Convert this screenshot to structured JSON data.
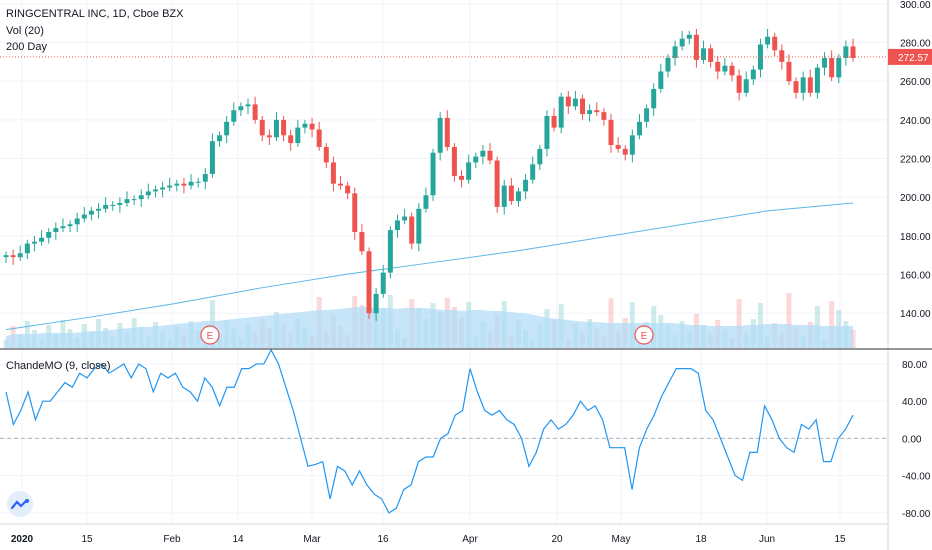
{
  "header": {
    "symbol_line": "RINGCENTRAL INC, 1D, Cboe BZX",
    "volume_label": "Vol (20)",
    "ma_label": "200 Day"
  },
  "oscillator": {
    "label": "ChandeMO (9, close)"
  },
  "price_marker": {
    "value": "272.57",
    "color": "#ef5350"
  },
  "earnings_badges": [
    {
      "label": "E",
      "date": "2020-02-10"
    },
    {
      "label": "E",
      "date": "2020-05-07"
    }
  ],
  "colors": {
    "up": "#26a69a",
    "down": "#ef5350",
    "ma_line": "#5bb8e6",
    "volume_avg_fill": "#b3dcf7",
    "oscillator_line": "#2196f3"
  },
  "icons": {
    "logo": "tradingview-logo-icon",
    "earnings": "earnings-badge-icon"
  },
  "chart_data": [
    {
      "type": "candlestick",
      "title": "RINGCENTRAL INC, 1D, Cboe BZX",
      "x_ticks": [
        "2020",
        "15",
        "Feb",
        "14",
        "Mar",
        "16",
        "Apr",
        "20",
        "May",
        "18",
        "Jun",
        "15"
      ],
      "y_ticks": [
        "140.00",
        "160.00",
        "180.00",
        "200.00",
        "220.00",
        "240.00",
        "260.00",
        "280.00",
        "300.00"
      ],
      "ylim": [
        122,
        302
      ],
      "last_price": 272.57,
      "candles_close": [
        170,
        169,
        171,
        176,
        177,
        179,
        182,
        184,
        185,
        186,
        189,
        191,
        193,
        194,
        196,
        196,
        197,
        199,
        199,
        201,
        203,
        204,
        205,
        206,
        207,
        206,
        208,
        208,
        212,
        229,
        232,
        239,
        245,
        247,
        248,
        240,
        232,
        231,
        240,
        232,
        228,
        236,
        238,
        235,
        226,
        218,
        207,
        206,
        202,
        182,
        172,
        140,
        150,
        161,
        183,
        188,
        190,
        176,
        194,
        201,
        223,
        241,
        226,
        211,
        209,
        218,
        221,
        224,
        219,
        195,
        206,
        198,
        203,
        209,
        217,
        225,
        242,
        236,
        252,
        247,
        251,
        243,
        245,
        244,
        240,
        227,
        225,
        222,
        232,
        239,
        246,
        256,
        265,
        272,
        278,
        282,
        284,
        271,
        277,
        270,
        265,
        268,
        263,
        254,
        261,
        266,
        279,
        283,
        276,
        270,
        260,
        254,
        262,
        254,
        267,
        272,
        262,
        272,
        278,
        272
      ],
      "series": [
        {
          "name": "200 Day",
          "values": [
            131.5,
            138,
            145,
            153,
            160,
            166,
            172,
            179,
            186,
            193,
            197
          ]
        },
        {
          "name": "Vol (20)",
          "values_relative": [
            12,
            14,
            14,
            14,
            15,
            15,
            15,
            15,
            16,
            17,
            17,
            18,
            19,
            20,
            21,
            21,
            22,
            23,
            24,
            25,
            26,
            27,
            27,
            28,
            29,
            30,
            31,
            32,
            33,
            34,
            35,
            36,
            37,
            38,
            38,
            39,
            40,
            41,
            41,
            40,
            40,
            39,
            40,
            40,
            40,
            39,
            38,
            38,
            37,
            38,
            38,
            37,
            37,
            36,
            35,
            34,
            32,
            30,
            29,
            28,
            27,
            26,
            26,
            25,
            25,
            25,
            25,
            25,
            25,
            25,
            25,
            24,
            23,
            23,
            22,
            22,
            22,
            22,
            23,
            23,
            24,
            24,
            24,
            23,
            23,
            23,
            22,
            22,
            22,
            22
          ]
        }
      ]
    },
    {
      "type": "line",
      "title": "ChandeMO (9, close)",
      "y_ticks": [
        "80.00",
        "40.00",
        "0.00",
        "-40.00",
        "-80.00"
      ],
      "ylim": [
        -92,
        95
      ],
      "values": [
        50,
        15,
        30,
        50,
        20,
        40,
        40,
        50,
        60,
        55,
        70,
        65,
        75,
        80,
        70,
        75,
        80,
        65,
        80,
        75,
        50,
        70,
        65,
        70,
        55,
        50,
        40,
        65,
        55,
        35,
        55,
        55,
        75,
        75,
        80,
        80,
        95,
        80,
        55,
        30,
        0,
        -30,
        -28,
        -25,
        -65,
        -30,
        -35,
        -50,
        -35,
        -50,
        -60,
        -65,
        -80,
        -75,
        -55,
        -50,
        -25,
        -20,
        -20,
        0,
        5,
        25,
        30,
        75,
        50,
        30,
        25,
        30,
        20,
        15,
        0,
        -30,
        -15,
        10,
        20,
        10,
        15,
        25,
        40,
        30,
        35,
        20,
        -10,
        -10,
        -10,
        -55,
        -10,
        10,
        25,
        45,
        60,
        75,
        75,
        75,
        70,
        30,
        20,
        0,
        -20,
        -40,
        -45,
        -15,
        -15,
        35,
        20,
        0,
        -10,
        -15,
        15,
        10,
        20,
        -25,
        -25,
        0,
        10,
        25
      ]
    }
  ]
}
